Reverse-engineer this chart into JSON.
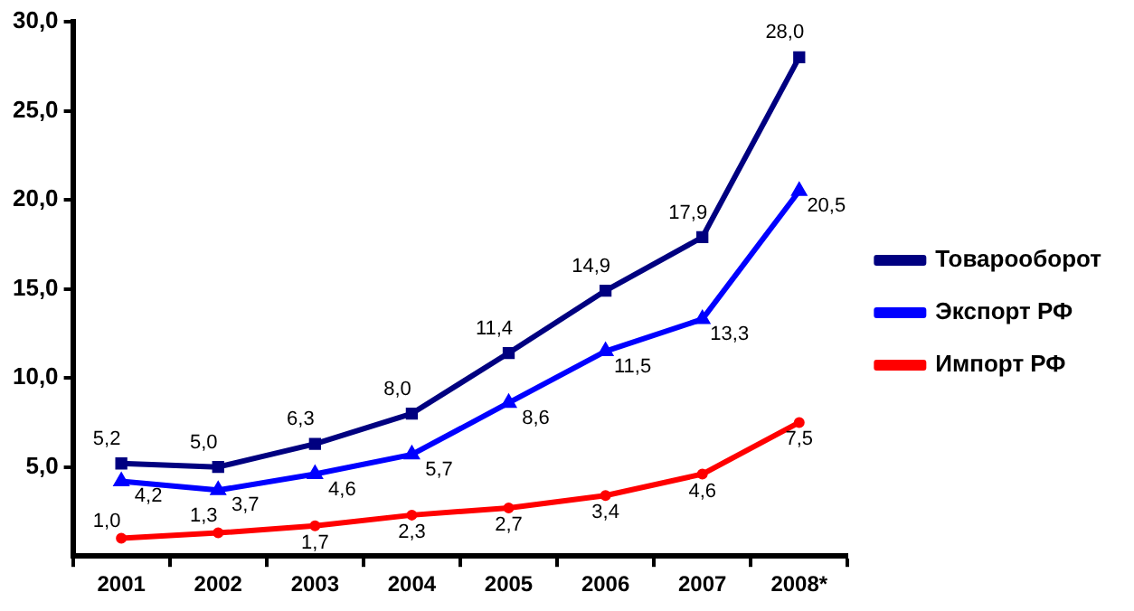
{
  "chart_data": {
    "type": "line",
    "categories": [
      "2001",
      "2002",
      "2003",
      "2004",
      "2005",
      "2006",
      "2007",
      "2008*"
    ],
    "series": [
      {
        "name": "Товарооборот",
        "color": "#000080",
        "marker": "square",
        "values": [
          5.2,
          5.0,
          6.3,
          8.0,
          11.4,
          14.9,
          17.9,
          28.0
        ],
        "value_labels": [
          "5,2",
          "5,0",
          "6,3",
          "8,0",
          "11,4",
          "14,9",
          "17,9",
          "28,0"
        ]
      },
      {
        "name": "Экспорт РФ",
        "color": "#0000ff",
        "marker": "triangle",
        "values": [
          4.2,
          3.7,
          4.6,
          5.7,
          8.6,
          11.5,
          13.3,
          20.5
        ],
        "value_labels": [
          "4,2",
          "3,7",
          "4,6",
          "5,7",
          "8,6",
          "11,5",
          "13,3",
          "20,5"
        ]
      },
      {
        "name": "Импорт РФ",
        "color": "#ff0000",
        "marker": "circle",
        "values": [
          1.0,
          1.3,
          1.7,
          2.3,
          2.7,
          3.4,
          4.6,
          7.5
        ],
        "value_labels": [
          "1,0",
          "1,3",
          "1,7",
          "2,3",
          "2,7",
          "3,4",
          "4,6",
          "7,5"
        ]
      }
    ],
    "ylim": [
      0,
      30
    ],
    "yticks": [
      {
        "value": 5,
        "label": "5,0"
      },
      {
        "value": 10,
        "label": "10,0"
      },
      {
        "value": 15,
        "label": "15,0"
      },
      {
        "value": 20,
        "label": "20,0"
      },
      {
        "value": 25,
        "label": "25,0"
      },
      {
        "value": 30,
        "label": "30,0"
      }
    ],
    "grid": false,
    "legend": "right",
    "line_style": "solid"
  }
}
